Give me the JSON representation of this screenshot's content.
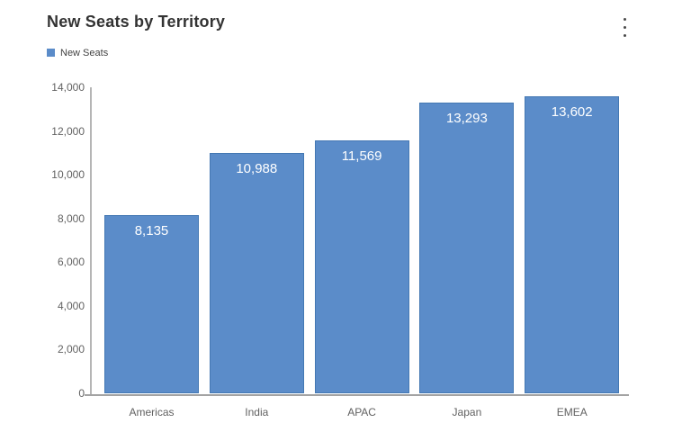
{
  "header": {
    "title": "New Seats by Territory",
    "menu_icon": "kebab-vertical"
  },
  "legend": {
    "position": "top-left",
    "items": [
      {
        "label": "New Seats",
        "color": "#5b8cc9"
      }
    ]
  },
  "colors": {
    "bar_fill": "#5b8cc9",
    "bar_border": "#4478b3",
    "title_text": "#333333",
    "axis_text": "#626262",
    "axis_line": "#b5b5b5",
    "baseline": "#a3a3a3",
    "value_label_text": "#ffffff"
  },
  "chart_data": {
    "type": "bar",
    "title": "New Seats by Territory",
    "categories": [
      "Americas",
      "India",
      "APAC",
      "Japan",
      "EMEA"
    ],
    "series": [
      {
        "name": "New Seats",
        "values": [
          8135,
          10988,
          11569,
          13293,
          13602
        ],
        "value_labels": [
          "8,135",
          "10,988",
          "11,569",
          "13,293",
          "13,602"
        ]
      }
    ],
    "xlabel": "",
    "ylabel": "",
    "ylim": [
      0,
      14000
    ],
    "ytick_step": 2000,
    "ytick_labels": [
      "0",
      "2,000",
      "4,000",
      "6,000",
      "8,000",
      "10,000",
      "12,000",
      "14,000"
    ],
    "grid": false,
    "legend_position": "top-left",
    "value_labels_position": "inside-top"
  }
}
